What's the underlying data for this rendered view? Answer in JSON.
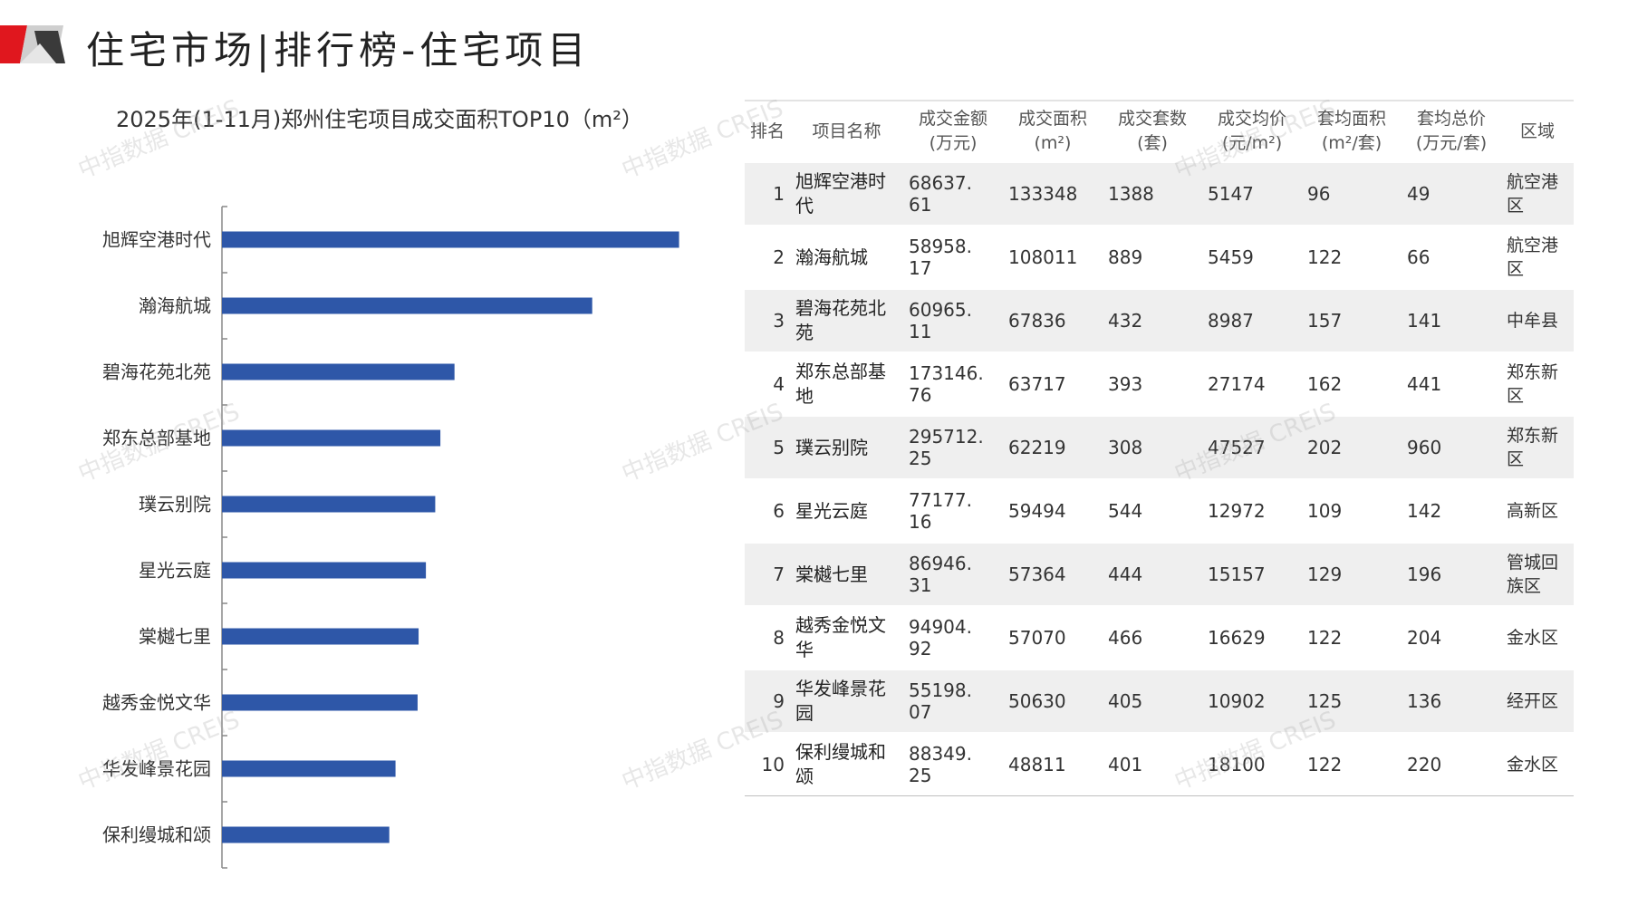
{
  "header": {
    "title": "住宅市场|排行榜-住宅项目",
    "colors": {
      "red": "#e0171e",
      "gray": "#a6a6a6",
      "dark": "#333333"
    }
  },
  "chart_data": {
    "type": "bar",
    "orientation": "horizontal",
    "title": "2025年(1-11月)郑州住宅项目成交面积TOP10（m²）",
    "categories": [
      "旭辉空港时代",
      "瀚海航城",
      "碧海花苑北苑",
      "郑东总部基地",
      "璞云别院",
      "星光云庭",
      "棠樾七里",
      "越秀金悦文华",
      "华发峰景花园",
      "保利缦城和颂"
    ],
    "values": [
      133348,
      108011,
      67836,
      63717,
      62219,
      59494,
      57364,
      57070,
      50630,
      48811
    ],
    "xlim": [
      0,
      148000
    ],
    "bar_color": "#2e57a8",
    "grid": false,
    "legend": "none"
  },
  "table": {
    "headers": [
      {
        "line1": "排名",
        "line2": ""
      },
      {
        "line1": "项目名称",
        "line2": ""
      },
      {
        "line1": "成交金额",
        "line2": "(万元)"
      },
      {
        "line1": "成交面积",
        "line2": "(m²)"
      },
      {
        "line1": "成交套数",
        "line2": "(套)"
      },
      {
        "line1": "成交均价",
        "line2": "(元/m²)"
      },
      {
        "line1": "套均面积",
        "line2": "(m²/套)"
      },
      {
        "line1": "套均总价",
        "line2": "(万元/套)"
      },
      {
        "line1": "区域",
        "line2": ""
      }
    ],
    "rows": [
      {
        "rank": "1",
        "name": "旭辉空港时代",
        "amount": "68637. 61",
        "area": "133348",
        "units": "1388",
        "price": "5147",
        "avg_area": "96",
        "avg_total": "49",
        "district": "航空港区"
      },
      {
        "rank": "2",
        "name": "瀚海航城",
        "amount": "58958. 17",
        "area": "108011",
        "units": "889",
        "price": "5459",
        "avg_area": "122",
        "avg_total": "66",
        "district": "航空港区"
      },
      {
        "rank": "3",
        "name": "碧海花苑北苑",
        "amount": "60965. 11",
        "area": "67836",
        "units": "432",
        "price": "8987",
        "avg_area": "157",
        "avg_total": "141",
        "district": "中牟县"
      },
      {
        "rank": "4",
        "name": "郑东总部基地",
        "amount": "173146. 76",
        "area": "63717",
        "units": "393",
        "price": "27174",
        "avg_area": "162",
        "avg_total": "441",
        "district": "郑东新区"
      },
      {
        "rank": "5",
        "name": "璞云别院",
        "amount": "295712. 25",
        "area": "62219",
        "units": "308",
        "price": "47527",
        "avg_area": "202",
        "avg_total": "960",
        "district": "郑东新区"
      },
      {
        "rank": "6",
        "name": "星光云庭",
        "amount": "77177. 16",
        "area": "59494",
        "units": "544",
        "price": "12972",
        "avg_area": "109",
        "avg_total": "142",
        "district": "高新区"
      },
      {
        "rank": "7",
        "name": "棠樾七里",
        "amount": "86946. 31",
        "area": "57364",
        "units": "444",
        "price": "15157",
        "avg_area": "129",
        "avg_total": "196",
        "district": "管城回族区"
      },
      {
        "rank": "8",
        "name": "越秀金悦文华",
        "amount": "94904. 92",
        "area": "57070",
        "units": "466",
        "price": "16629",
        "avg_area": "122",
        "avg_total": "204",
        "district": "金水区"
      },
      {
        "rank": "9",
        "name": "华发峰景花园",
        "amount": "55198. 07",
        "area": "50630",
        "units": "405",
        "price": "10902",
        "avg_area": "125",
        "avg_total": "136",
        "district": "经开区"
      },
      {
        "rank": "10",
        "name": "保利缦城和颂",
        "amount": "88349. 25",
        "area": "48811",
        "units": "401",
        "price": "18100",
        "avg_area": "122",
        "avg_total": "220",
        "district": "金水区"
      }
    ]
  },
  "watermark": "中指数据 CREIS"
}
